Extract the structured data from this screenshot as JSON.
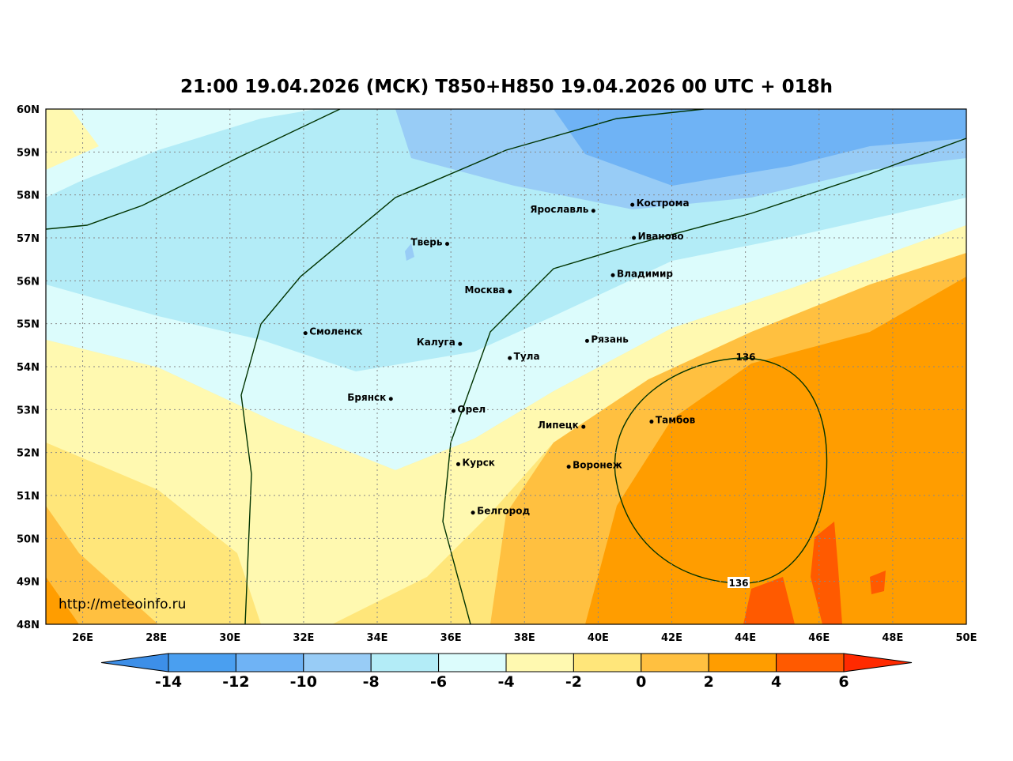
{
  "title": "21:00 19.04.2026 (МСК) T850+H850 19.04.2026 00 UTC + 018h",
  "watermark": "http://meteoinfo.ru",
  "map": {
    "lon_range": [
      25,
      50
    ],
    "lat_range": [
      48,
      60
    ],
    "lon_ticks": [
      "26E",
      "28E",
      "30E",
      "32E",
      "34E",
      "36E",
      "38E",
      "40E",
      "42E",
      "44E",
      "46E",
      "48E",
      "50E"
    ],
    "lat_ticks": [
      "60N",
      "59N",
      "58N",
      "57N",
      "56N",
      "55N",
      "54N",
      "53N",
      "52N",
      "51N",
      "50N",
      "49N",
      "48N"
    ],
    "contour_labels": [
      "136",
      "136"
    ],
    "cities": [
      {
        "name": "Ярославль",
        "lon": 39.87,
        "lat": 57.63,
        "side": "left"
      },
      {
        "name": "Кострома",
        "lon": 40.93,
        "lat": 57.77,
        "side": "right"
      },
      {
        "name": "Тверь",
        "lon": 35.9,
        "lat": 56.86,
        "side": "left"
      },
      {
        "name": "Иваново",
        "lon": 40.97,
        "lat": 57.0,
        "side": "right"
      },
      {
        "name": "Владимир",
        "lon": 40.4,
        "lat": 56.13,
        "side": "right"
      },
      {
        "name": "Москва",
        "lon": 37.6,
        "lat": 55.75,
        "side": "left"
      },
      {
        "name": "Смоленск",
        "lon": 32.05,
        "lat": 54.78,
        "side": "right"
      },
      {
        "name": "Калуга",
        "lon": 36.25,
        "lat": 54.53,
        "side": "left"
      },
      {
        "name": "Рязань",
        "lon": 39.7,
        "lat": 54.6,
        "side": "right"
      },
      {
        "name": "Тула",
        "lon": 37.6,
        "lat": 54.2,
        "side": "right"
      },
      {
        "name": "Брянск",
        "lon": 34.37,
        "lat": 53.25,
        "side": "left"
      },
      {
        "name": "Орел",
        "lon": 36.07,
        "lat": 52.97,
        "side": "right"
      },
      {
        "name": "Липецк",
        "lon": 39.6,
        "lat": 52.6,
        "side": "left"
      },
      {
        "name": "Тамбов",
        "lon": 41.45,
        "lat": 52.72,
        "side": "right"
      },
      {
        "name": "Курск",
        "lon": 36.2,
        "lat": 51.73,
        "side": "right"
      },
      {
        "name": "Воронеж",
        "lon": 39.2,
        "lat": 51.67,
        "side": "right"
      },
      {
        "name": "Белгород",
        "lon": 36.6,
        "lat": 50.6,
        "side": "right"
      }
    ]
  },
  "colorbar": {
    "labels": [
      "-14",
      "-12",
      "-10",
      "-8",
      "-6",
      "-4",
      "-2",
      "0",
      "2",
      "4",
      "6"
    ],
    "colors": [
      "#4a9ff0",
      "#6fb3f5",
      "#98ccf6",
      "#b3ecf7",
      "#dcfcfc",
      "#fff9b0",
      "#ffe67a",
      "#ffc040",
      "#ff9d00",
      "#ff5a00"
    ],
    "under_color": "#3d8fe8",
    "over_color": "#ff2a00"
  }
}
